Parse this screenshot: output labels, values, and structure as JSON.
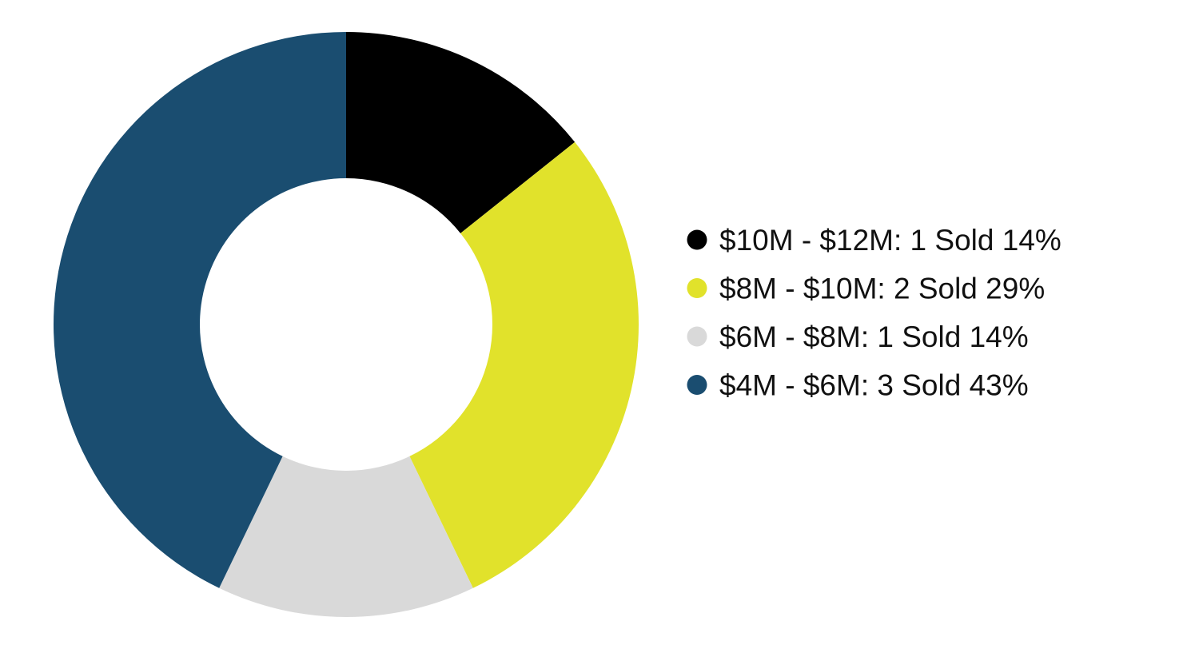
{
  "chart_data": {
    "type": "pie",
    "donut": true,
    "legend_position": "right",
    "series": [
      {
        "label": "$10M - $12M: 1 Sold 14%",
        "value": 1,
        "percent": 14,
        "color": "#000000"
      },
      {
        "label": "$8M - $10M: 2 Sold 29%",
        "value": 2,
        "percent": 29,
        "color": "#e1e22b"
      },
      {
        "label": "$6M - $8M: 1 Sold 14%",
        "value": 1,
        "percent": 14,
        "color": "#d9d9d9"
      },
      {
        "label": "$4M - $6M: 3 Sold 43%",
        "value": 3,
        "percent": 43,
        "color": "#1a4d70"
      }
    ]
  }
}
